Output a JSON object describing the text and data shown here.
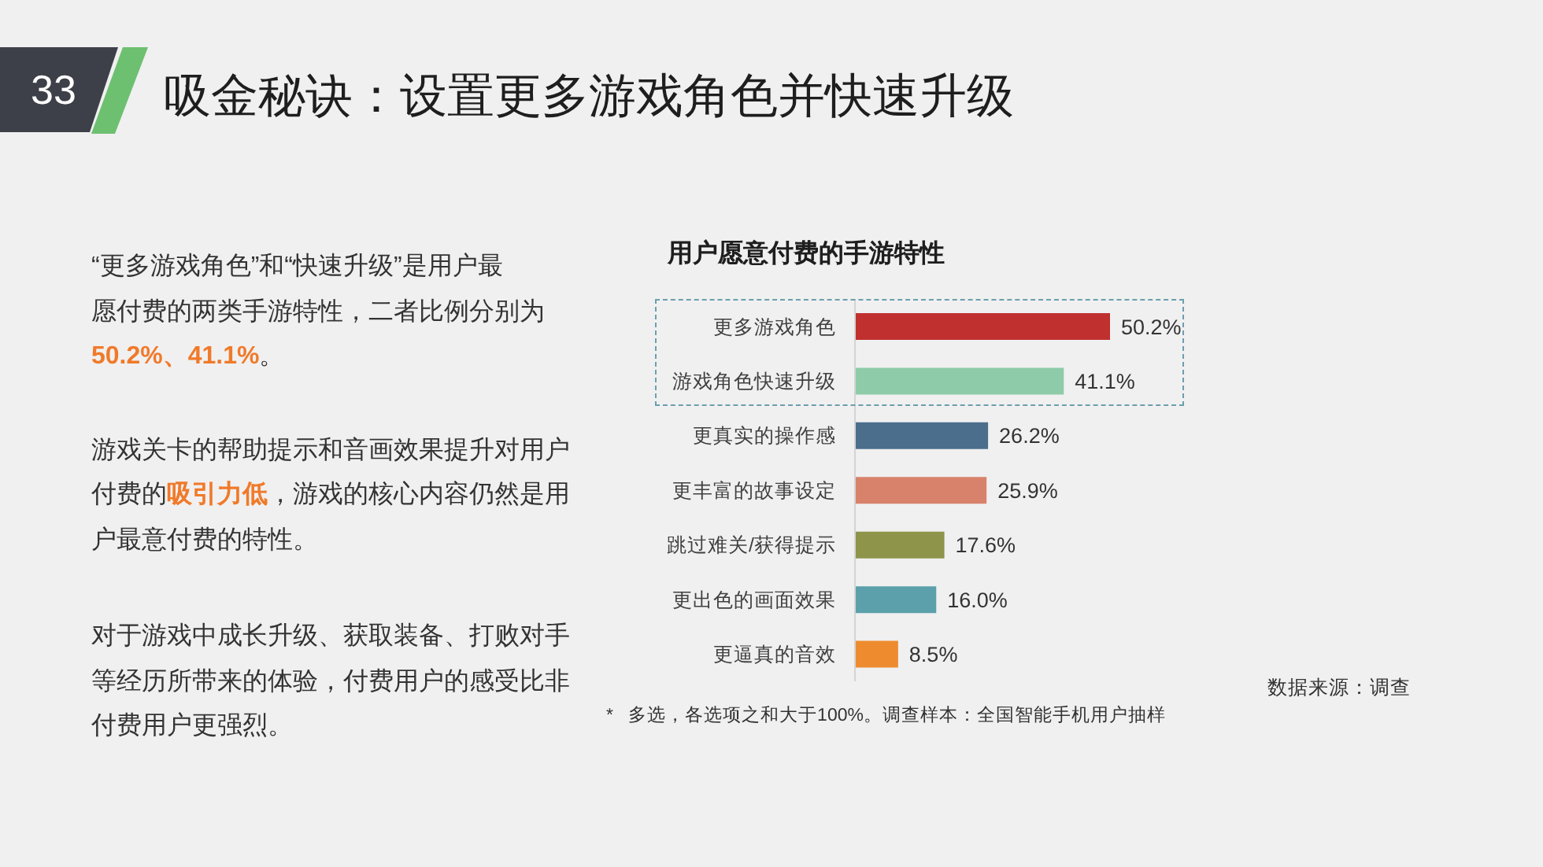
{
  "chart_data": {
    "type": "bar",
    "orientation": "horizontal",
    "title": "吸金秘诀：设置更多游戏角色并快速升级",
    "subtitle": "用户愿意付费的手游特性",
    "categories": [
      "更多游戏角色",
      "游戏角色快速升级",
      "更真实的操作感",
      "更丰富的故事设定",
      "跳过难关/获得提示",
      "更出色的画面效果",
      "更逼真的音效"
    ],
    "values": [
      50.2,
      41.1,
      26.2,
      25.9,
      17.6,
      16.0,
      8.5
    ],
    "colors": [
      "#c0302f",
      "#8ecba8",
      "#4b6e8c",
      "#d9826b",
      "#8e944a",
      "#5ba0aa",
      "#ee8b2f"
    ],
    "value_labels": [
      "50.2%",
      "41.1%",
      "26.2%",
      "25.9%",
      "17.6%",
      "16.0%",
      "8.5%"
    ],
    "tick_labels": "y",
    "annotations": [
      "33",
      "“更多游戏角色”和“快速升级”是用户最",
      "愿付费的两类手游特性，二者比例分别为",
      "50.2%、41.1%",
      "。",
      "游戏关卡的帮助提示和音画效果提升对用户",
      "付费的",
      "吸引力低",
      "，游戏的核心内容仍然是用",
      "户最意付费的特性。",
      "对于游戏中成长升级、获取装备、打败对手",
      "等经历所带来的体验，付费用户的感受比非",
      "付费用户更强烈。",
      "*   多选，各选项之和大于100%。调查样本：全国智能手机用户抽样",
      "数据来源：调查"
    ]
  }
}
